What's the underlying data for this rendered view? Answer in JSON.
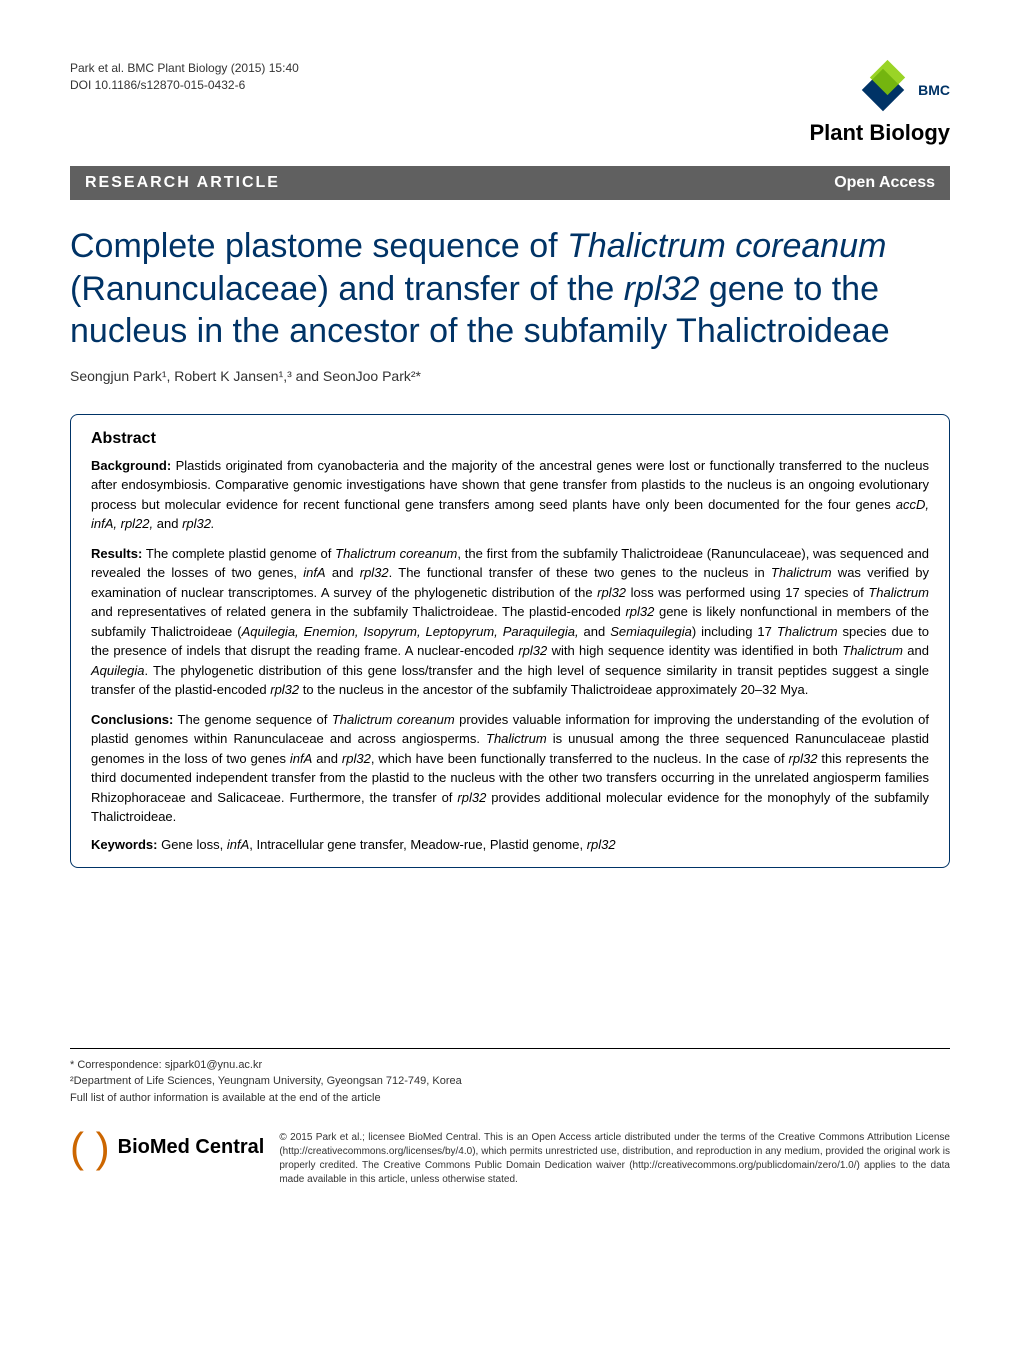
{
  "header": {
    "citation_line1": "Park et al. BMC Plant Biology (2015) 15:40",
    "citation_line2": "DOI 10.1186/s12870-015-0432-6",
    "logo_bmc": "BMC",
    "journal_name": "Plant Biology"
  },
  "banner": {
    "left": "RESEARCH ARTICLE",
    "right": "Open Access"
  },
  "title": {
    "pre1": "Complete plastome sequence of ",
    "italic1": "Thalictrum coreanum",
    "mid1": " (Ranunculaceae) and transfer of the ",
    "italic2": "rpl32",
    "post1": " gene to the nucleus in the ancestor of the subfamily Thalictroideae"
  },
  "authors": "Seongjun Park¹, Robert K Jansen¹,³ and SeonJoo Park²*",
  "abstract": {
    "heading": "Abstract",
    "background_label": "Background:",
    "background_text": " Plastids originated from cyanobacteria and the majority of the ancestral genes were lost or functionally transferred to the nucleus after endosymbiosis. Comparative genomic investigations have shown that gene transfer from plastids to the nucleus is an ongoing evolutionary process but molecular evidence for recent functional gene transfers among seed plants have only been documented for the four genes ",
    "background_italic": "accD, infA, rpl22,",
    "background_text2": " and ",
    "background_italic2": "rpl32.",
    "results_label": "Results:",
    "results_text": " The complete plastid genome of ",
    "results_italic1": "Thalictrum coreanum",
    "results_text2": ", the first from the subfamily Thalictroideae (Ranunculaceae), was sequenced and revealed the losses of two genes, ",
    "results_italic2": "infA",
    "results_text3": " and ",
    "results_italic3": "rpl32",
    "results_text4": ". The functional transfer of these two genes to the nucleus in ",
    "results_italic4": "Thalictrum",
    "results_text5": " was verified by examination of nuclear transcriptomes. A survey of the phylogenetic distribution of the ",
    "results_italic5": "rpl32",
    "results_text6": " loss was performed using 17 species of ",
    "results_italic6": "Thalictrum",
    "results_text7": " and representatives of related genera in the subfamily Thalictroideae. The plastid-encoded ",
    "results_italic7": "rpl32",
    "results_text8": " gene is likely nonfunctional in members of the subfamily Thalictroideae (",
    "results_italic8": "Aquilegia, Enemion, Isopyrum, Leptopyrum, Paraquilegia,",
    "results_text9": " and ",
    "results_italic9": "Semiaquilegia",
    "results_text10": ") including 17 ",
    "results_italic10": "Thalictrum",
    "results_text11": " species due to the presence of indels that disrupt the reading frame. A nuclear-encoded ",
    "results_italic11": "rpl32",
    "results_text12": " with high sequence identity was identified in both ",
    "results_italic12": "Thalictrum",
    "results_text13": " and ",
    "results_italic13": "Aquilegia",
    "results_text14": ". The phylogenetic distribution of this gene loss/transfer and the high level of sequence similarity in transit peptides suggest a single transfer of the plastid-encoded ",
    "results_italic14": "rpl32",
    "results_text15": " to the nucleus in the ancestor of the subfamily Thalictroideae approximately 20–32 Mya.",
    "conclusions_label": "Conclusions:",
    "conclusions_text": " The genome sequence of ",
    "conclusions_italic1": "Thalictrum coreanum",
    "conclusions_text2": " provides valuable information for improving the understanding of the evolution of plastid genomes within Ranunculaceae and across angiosperms. ",
    "conclusions_italic2": "Thalictrum",
    "conclusions_text3": " is unusual among the three sequenced Ranunculaceae plastid genomes in the loss of two genes ",
    "conclusions_italic3": "infA",
    "conclusions_text4": " and ",
    "conclusions_italic4": "rpl32",
    "conclusions_text5": ", which have been functionally transferred to the nucleus. In the case of ",
    "conclusions_italic5": "rpl32",
    "conclusions_text6": " this represents the third documented independent transfer from the plastid to the nucleus with the other two transfers occurring in the unrelated angiosperm families Rhizophoraceae and Salicaceae. Furthermore, the transfer of ",
    "conclusions_italic6": "rpl32",
    "conclusions_text7": " provides additional molecular evidence for the monophyly of the subfamily Thalictroideae.",
    "keywords_label": "Keywords:",
    "keywords_text": " Gene loss, ",
    "keywords_italic1": "infA",
    "keywords_text2": ", Intracellular gene transfer, Meadow-rue, Plastid genome, ",
    "keywords_italic2": "rpl32"
  },
  "footer": {
    "correspondence_label": "* Correspondence: ",
    "correspondence_email": "sjpark01@ynu.ac.kr",
    "affiliation": "²Department of Life Sciences, Yeungnam University, Gyeongsan 712-749, Korea",
    "author_info": "Full list of author information is available at the end of the article",
    "biomed_text": "BioMed Central",
    "copyright": "© 2015 Park et al.; licensee BioMed Central. This is an Open Access article distributed under the terms of the Creative Commons Attribution License (http://creativecommons.org/licenses/by/4.0), which permits unrestricted use, distribution, and reproduction in any medium, provided the original work is properly credited. The Creative Commons Public Domain Dedication waiver (http://creativecommons.org/publicdomain/zero/1.0/) applies to the data made available in this article, unless otherwise stated."
  },
  "colors": {
    "title_color": "#003366",
    "banner_bg": "#606060",
    "banner_fg": "#ffffff",
    "border_color": "#003366",
    "biomed_orange": "#cc6600",
    "logo_green": "#88cc00",
    "logo_navy": "#003366"
  }
}
